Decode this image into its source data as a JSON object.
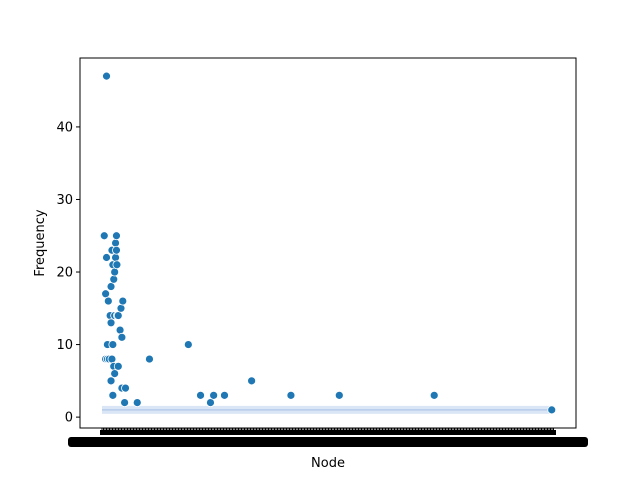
{
  "chart_data": {
    "type": "scatter",
    "title": "",
    "xlabel": "Node",
    "ylabel": "Frequency",
    "ylim": [
      -1.5,
      49.5
    ],
    "xlim": [
      0,
      100
    ],
    "yticks": [
      0,
      10,
      20,
      30,
      40
    ],
    "x_tick_labels": "dense, overlapping and unreadable",
    "grid": false,
    "legend": "none",
    "marker_color": "#1f77b4",
    "band_color": "#aec7e8",
    "points": [
      {
        "x": 0.5,
        "y": 25
      },
      {
        "x": 0.8,
        "y": 17
      },
      {
        "x": 0.8,
        "y": 8
      },
      {
        "x": 1.0,
        "y": 47
      },
      {
        "x": 1.0,
        "y": 22
      },
      {
        "x": 1.2,
        "y": 10
      },
      {
        "x": 1.2,
        "y": 8
      },
      {
        "x": 1.4,
        "y": 16
      },
      {
        "x": 1.6,
        "y": 8
      },
      {
        "x": 1.8,
        "y": 14
      },
      {
        "x": 2.0,
        "y": 18
      },
      {
        "x": 2.0,
        "y": 13
      },
      {
        "x": 2.0,
        "y": 5
      },
      {
        "x": 2.2,
        "y": 23
      },
      {
        "x": 2.2,
        "y": 8
      },
      {
        "x": 2.4,
        "y": 21
      },
      {
        "x": 2.4,
        "y": 10
      },
      {
        "x": 2.4,
        "y": 3
      },
      {
        "x": 2.6,
        "y": 19
      },
      {
        "x": 2.6,
        "y": 7
      },
      {
        "x": 2.8,
        "y": 20
      },
      {
        "x": 2.8,
        "y": 14
      },
      {
        "x": 2.8,
        "y": 6
      },
      {
        "x": 3.0,
        "y": 24
      },
      {
        "x": 3.0,
        "y": 22
      },
      {
        "x": 3.2,
        "y": 25
      },
      {
        "x": 3.2,
        "y": 23
      },
      {
        "x": 3.3,
        "y": 21
      },
      {
        "x": 3.4,
        "y": 14
      },
      {
        "x": 3.6,
        "y": 14
      },
      {
        "x": 3.6,
        "y": 7
      },
      {
        "x": 4.0,
        "y": 12
      },
      {
        "x": 4.2,
        "y": 15
      },
      {
        "x": 4.4,
        "y": 11
      },
      {
        "x": 4.4,
        "y": 4
      },
      {
        "x": 4.6,
        "y": 16
      },
      {
        "x": 5.0,
        "y": 2
      },
      {
        "x": 5.2,
        "y": 4
      },
      {
        "x": 7.8,
        "y": 2
      },
      {
        "x": 10.5,
        "y": 8
      },
      {
        "x": 19.1,
        "y": 10
      },
      {
        "x": 21.8,
        "y": 3
      },
      {
        "x": 24.0,
        "y": 2
      },
      {
        "x": 24.7,
        "y": 3
      },
      {
        "x": 27.1,
        "y": 3
      },
      {
        "x": 33.1,
        "y": 5
      },
      {
        "x": 41.8,
        "y": 3
      },
      {
        "x": 52.5,
        "y": 3
      },
      {
        "x": 73.5,
        "y": 3
      },
      {
        "x": 99.5,
        "y": 1
      }
    ],
    "band": {
      "x_start": 0,
      "x_end": 100,
      "y": 1,
      "lower": 0.45,
      "upper": 1.55
    }
  }
}
